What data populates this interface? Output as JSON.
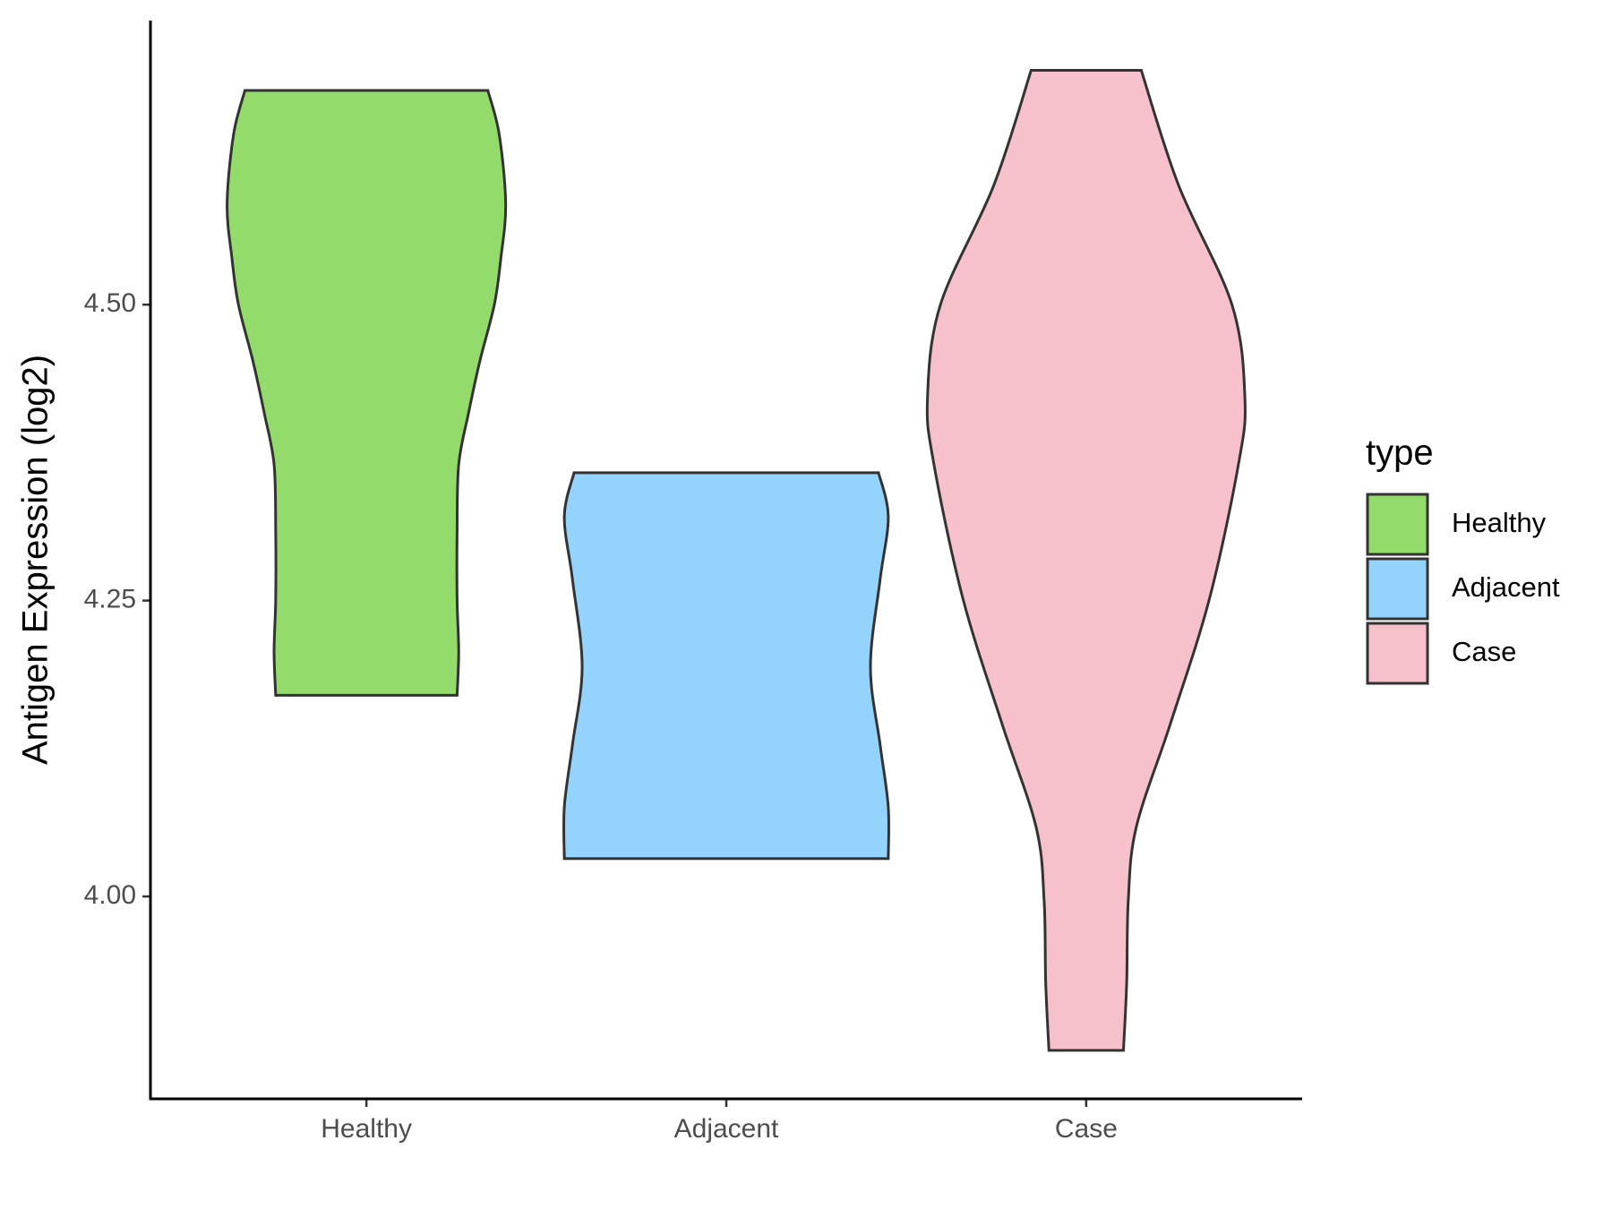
{
  "chart_data": {
    "type": "violin",
    "y_label": "Antigen Expression (log2)",
    "categories": [
      "Healthy",
      "Adjacent",
      "Case"
    ],
    "legend_title": "type",
    "legend_position": "right",
    "series": [
      {
        "name": "Healthy",
        "color": "#93dc6b",
        "y": [
          4.681,
          4.644,
          4.585,
          4.539,
          4.5,
          4.452,
          4.408,
          4.365,
          4.308,
          4.251,
          4.207,
          4.17
        ],
        "density": [
          0.75,
          0.82,
          0.86,
          0.83,
          0.79,
          0.7,
          0.63,
          0.57,
          0.56,
          0.56,
          0.57,
          0.56
        ]
      },
      {
        "name": "Adjacent",
        "color": "#94d3fc",
        "y": [
          4.358,
          4.321,
          4.268,
          4.194,
          4.128,
          4.076,
          4.032
        ],
        "density": [
          0.94,
          1.0,
          0.95,
          0.89,
          0.95,
          1.0,
          1.0
        ]
      },
      {
        "name": "Case",
        "color": "#f7c1cc",
        "y": [
          4.698,
          4.601,
          4.5,
          4.421,
          4.365,
          4.251,
          4.146,
          4.059,
          3.997,
          3.927,
          3.87
        ],
        "density": [
          0.34,
          0.57,
          0.9,
          0.98,
          0.94,
          0.76,
          0.52,
          0.31,
          0.26,
          0.25,
          0.23
        ]
      }
    ],
    "ylim": [
      3.829,
      4.74
    ],
    "yticks": [
      {
        "value": 4,
        "label": "4.00"
      },
      4.25,
      {
        "value": 4.5,
        "label": "4.50"
      }
    ],
    "grid": false
  }
}
